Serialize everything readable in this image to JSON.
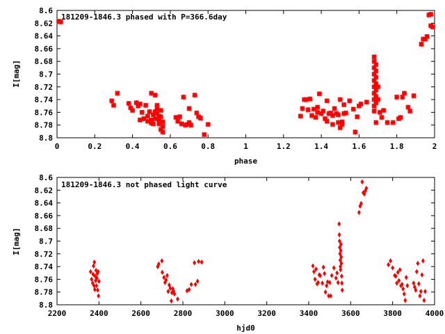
{
  "chart_data": [
    {
      "type": "scatter",
      "title": "181209-1846.3 phased with P=366.6day",
      "xlabel": "phase",
      "ylabel": "I[mag]",
      "xlim": [
        0,
        2
      ],
      "ylim": [
        8.6,
        8.8
      ],
      "y_inverted": true,
      "xticks": [
        0,
        0.2,
        0.4,
        0.6,
        0.8,
        1,
        1.2,
        1.4,
        1.6,
        1.8,
        2
      ],
      "xtick_labels": [
        "0",
        "0.2",
        "0.4",
        "0.6",
        "0.8",
        "1",
        "1.2",
        "1.4",
        "1.6",
        "1.8",
        "2"
      ],
      "yticks": [
        8.6,
        8.62,
        8.64,
        8.66,
        8.68,
        8.7,
        8.72,
        8.74,
        8.76,
        8.78,
        8.8
      ],
      "ytick_labels": [
        "8.6",
        "8.62",
        "8.64",
        "8.66",
        "8.68",
        "8.7",
        "8.72",
        "8.74",
        "8.76",
        "8.78",
        "8.8"
      ],
      "grid": false,
      "marker_color": "#ff0000",
      "points": [
        [
          0.01,
          8.617
        ],
        [
          0.02,
          8.618
        ],
        [
          0.29,
          8.742
        ],
        [
          0.3,
          8.749
        ],
        [
          0.32,
          8.73
        ],
        [
          0.38,
          8.746
        ],
        [
          0.39,
          8.753
        ],
        [
          0.4,
          8.757
        ],
        [
          0.42,
          8.745
        ],
        [
          0.43,
          8.75
        ],
        [
          0.44,
          8.772
        ],
        [
          0.44,
          8.747
        ],
        [
          0.45,
          8.76
        ],
        [
          0.46,
          8.77
        ],
        [
          0.47,
          8.749
        ],
        [
          0.48,
          8.766
        ],
        [
          0.48,
          8.774
        ],
        [
          0.49,
          8.759
        ],
        [
          0.5,
          8.73
        ],
        [
          0.5,
          8.772
        ],
        [
          0.5,
          8.777
        ],
        [
          0.51,
          8.764
        ],
        [
          0.51,
          8.778
        ],
        [
          0.52,
          8.733
        ],
        [
          0.52,
          8.77
        ],
        [
          0.52,
          8.759
        ],
        [
          0.53,
          8.749
        ],
        [
          0.53,
          8.755
        ],
        [
          0.53,
          8.762
        ],
        [
          0.54,
          8.766
        ],
        [
          0.54,
          8.772
        ],
        [
          0.54,
          8.778
        ],
        [
          0.55,
          8.787
        ],
        [
          0.55,
          8.757
        ],
        [
          0.55,
          8.767
        ],
        [
          0.56,
          8.775
        ],
        [
          0.56,
          8.782
        ],
        [
          0.56,
          8.791
        ],
        [
          0.63,
          8.768
        ],
        [
          0.64,
          8.774
        ],
        [
          0.65,
          8.767
        ],
        [
          0.66,
          8.778
        ],
        [
          0.67,
          8.736
        ],
        [
          0.68,
          8.78
        ],
        [
          0.69,
          8.779
        ],
        [
          0.7,
          8.776
        ],
        [
          0.7,
          8.754
        ],
        [
          0.71,
          8.78
        ],
        [
          0.73,
          8.733
        ],
        [
          0.74,
          8.761
        ],
        [
          0.75,
          8.767
        ],
        [
          0.76,
          8.769
        ],
        [
          0.78,
          8.795
        ],
        [
          0.8,
          8.779
        ],
        [
          1.29,
          8.766
        ],
        [
          1.3,
          8.754
        ],
        [
          1.31,
          8.74
        ],
        [
          1.32,
          8.74
        ],
        [
          1.33,
          8.756
        ],
        [
          1.34,
          8.739
        ],
        [
          1.35,
          8.765
        ],
        [
          1.36,
          8.755
        ],
        [
          1.37,
          8.768
        ],
        [
          1.38,
          8.76
        ],
        [
          1.38,
          8.752
        ],
        [
          1.39,
          8.731
        ],
        [
          1.4,
          8.762
        ],
        [
          1.41,
          8.758
        ],
        [
          1.42,
          8.77
        ],
        [
          1.43,
          8.774
        ],
        [
          1.43,
          8.742
        ],
        [
          1.44,
          8.762
        ],
        [
          1.45,
          8.761
        ],
        [
          1.46,
          8.765
        ],
        [
          1.46,
          8.779
        ],
        [
          1.47,
          8.754
        ],
        [
          1.48,
          8.762
        ],
        [
          1.49,
          8.764
        ],
        [
          1.49,
          8.776
        ],
        [
          1.5,
          8.784
        ],
        [
          1.5,
          8.74
        ],
        [
          1.51,
          8.775
        ],
        [
          1.51,
          8.779
        ],
        [
          1.52,
          8.762
        ],
        [
          1.52,
          8.748
        ],
        [
          1.53,
          8.761
        ],
        [
          1.55,
          8.742
        ],
        [
          1.57,
          8.755
        ],
        [
          1.58,
          8.791
        ],
        [
          1.59,
          8.767
        ],
        [
          1.6,
          8.75
        ],
        [
          1.61,
          8.747
        ],
        [
          1.64,
          8.744
        ],
        [
          1.68,
          8.673
        ],
        [
          1.68,
          8.68
        ],
        [
          1.68,
          8.69
        ],
        [
          1.68,
          8.7
        ],
        [
          1.68,
          8.71
        ],
        [
          1.68,
          8.72
        ],
        [
          1.68,
          8.73
        ],
        [
          1.68,
          8.74
        ],
        [
          1.68,
          8.75
        ],
        [
          1.68,
          8.758
        ],
        [
          1.69,
          8.685
        ],
        [
          1.69,
          8.695
        ],
        [
          1.69,
          8.705
        ],
        [
          1.69,
          8.715
        ],
        [
          1.69,
          8.725
        ],
        [
          1.69,
          8.735
        ],
        [
          1.69,
          8.745
        ],
        [
          1.69,
          8.776
        ],
        [
          1.7,
          8.72
        ],
        [
          1.7,
          8.74
        ],
        [
          1.71,
          8.76
        ],
        [
          1.72,
          8.768
        ],
        [
          1.73,
          8.757
        ],
        [
          1.75,
          8.776
        ],
        [
          1.78,
          8.776
        ],
        [
          1.8,
          8.736
        ],
        [
          1.81,
          8.77
        ],
        [
          1.82,
          8.768
        ],
        [
          1.83,
          8.736
        ],
        [
          1.84,
          8.73
        ],
        [
          1.86,
          8.752
        ],
        [
          1.87,
          8.758
        ],
        [
          1.89,
          8.734
        ],
        [
          1.93,
          8.653
        ],
        [
          1.94,
          8.645
        ],
        [
          1.95,
          8.645
        ],
        [
          1.96,
          8.641
        ],
        [
          1.97,
          8.607
        ],
        [
          1.98,
          8.606
        ],
        [
          1.98,
          8.624
        ],
        [
          1.99,
          8.626
        ]
      ]
    },
    {
      "type": "scatter",
      "title": "181209-1846.3 not phased light curve",
      "xlabel": "hjd0",
      "ylabel": "I[mag]",
      "xlim": [
        2200,
        4000
      ],
      "ylim": [
        8.6,
        8.8
      ],
      "y_inverted": true,
      "xticks": [
        2200,
        2400,
        2600,
        2800,
        3000,
        3200,
        3400,
        3600,
        3800,
        4000
      ],
      "xtick_labels": [
        "2200",
        "2400",
        "2600",
        "2800",
        "3000",
        "3200",
        "3400",
        "3600",
        "3800",
        "4000"
      ],
      "yticks": [
        8.6,
        8.62,
        8.64,
        8.66,
        8.68,
        8.7,
        8.72,
        8.74,
        8.76,
        8.78,
        8.8
      ],
      "ytick_labels": [
        "8.6",
        "8.62",
        "8.64",
        "8.66",
        "8.68",
        "8.7",
        "8.72",
        "8.74",
        "8.76",
        "8.78",
        "8.8"
      ],
      "grid": false,
      "marker_color": "#ff0000",
      "points": [
        [
          2360,
          8.748
        ],
        [
          2365,
          8.76
        ],
        [
          2370,
          8.766
        ],
        [
          2372,
          8.752
        ],
        [
          2374,
          8.739
        ],
        [
          2376,
          8.77
        ],
        [
          2378,
          8.733
        ],
        [
          2380,
          8.776
        ],
        [
          2382,
          8.755
        ],
        [
          2384,
          8.762
        ],
        [
          2386,
          8.746
        ],
        [
          2388,
          8.77
        ],
        [
          2390,
          8.758
        ],
        [
          2392,
          8.751
        ],
        [
          2394,
          8.777
        ],
        [
          2396,
          8.748
        ],
        [
          2398,
          8.786
        ],
        [
          2400,
          8.763
        ],
        [
          2680,
          8.74
        ],
        [
          2685,
          8.736
        ],
        [
          2700,
          8.731
        ],
        [
          2702,
          8.749
        ],
        [
          2710,
          8.757
        ],
        [
          2715,
          8.765
        ],
        [
          2720,
          8.761
        ],
        [
          2725,
          8.754
        ],
        [
          2730,
          8.779
        ],
        [
          2735,
          8.769
        ],
        [
          2740,
          8.774
        ],
        [
          2745,
          8.794
        ],
        [
          2748,
          8.781
        ],
        [
          2752,
          8.775
        ],
        [
          2756,
          8.779
        ],
        [
          2760,
          8.783
        ],
        [
          2775,
          8.791
        ],
        [
          2820,
          8.778
        ],
        [
          2830,
          8.776
        ],
        [
          2840,
          8.768
        ],
        [
          2855,
          8.734
        ],
        [
          2860,
          8.768
        ],
        [
          2870,
          8.763
        ],
        [
          2875,
          8.732
        ],
        [
          2890,
          8.733
        ],
        [
          3420,
          8.739
        ],
        [
          3425,
          8.748
        ],
        [
          3430,
          8.76
        ],
        [
          3435,
          8.744
        ],
        [
          3440,
          8.767
        ],
        [
          3445,
          8.765
        ],
        [
          3450,
          8.753
        ],
        [
          3455,
          8.754
        ],
        [
          3465,
          8.766
        ],
        [
          3470,
          8.741
        ],
        [
          3475,
          8.751
        ],
        [
          3480,
          8.78
        ],
        [
          3485,
          8.77
        ],
        [
          3490,
          8.764
        ],
        [
          3495,
          8.786
        ],
        [
          3500,
          8.765
        ],
        [
          3505,
          8.786
        ],
        [
          3510,
          8.754
        ],
        [
          3520,
          8.742
        ],
        [
          3530,
          8.758
        ],
        [
          3535,
          8.75
        ],
        [
          3540,
          8.765
        ],
        [
          3545,
          8.673
        ],
        [
          3546,
          8.69
        ],
        [
          3547,
          8.7
        ],
        [
          3548,
          8.71
        ],
        [
          3549,
          8.72
        ],
        [
          3550,
          8.73
        ],
        [
          3551,
          8.74
        ],
        [
          3552,
          8.745
        ],
        [
          3553,
          8.715
        ],
        [
          3554,
          8.705
        ],
        [
          3555,
          8.725
        ],
        [
          3556,
          8.735
        ],
        [
          3557,
          8.755
        ],
        [
          3558,
          8.766
        ],
        [
          3560,
          8.777
        ],
        [
          3640,
          8.655
        ],
        [
          3645,
          8.645
        ],
        [
          3650,
          8.641
        ],
        [
          3655,
          8.607
        ],
        [
          3660,
          8.624
        ],
        [
          3665,
          8.626
        ],
        [
          3670,
          8.621
        ],
        [
          3675,
          8.617
        ],
        [
          3780,
          8.737
        ],
        [
          3790,
          8.731
        ],
        [
          3800,
          8.742
        ],
        [
          3810,
          8.754
        ],
        [
          3815,
          8.755
        ],
        [
          3820,
          8.766
        ],
        [
          3825,
          8.749
        ],
        [
          3830,
          8.762
        ],
        [
          3835,
          8.745
        ],
        [
          3840,
          8.77
        ],
        [
          3845,
          8.768
        ],
        [
          3850,
          8.775
        ],
        [
          3855,
          8.783
        ],
        [
          3860,
          8.793
        ],
        [
          3865,
          8.757
        ],
        [
          3870,
          8.77
        ],
        [
          3900,
          8.766
        ],
        [
          3905,
          8.772
        ],
        [
          3910,
          8.777
        ],
        [
          3915,
          8.748
        ],
        [
          3920,
          8.735
        ],
        [
          3925,
          8.767
        ],
        [
          3930,
          8.786
        ],
        [
          3935,
          8.779
        ],
        [
          3940,
          8.753
        ],
        [
          3945,
          8.731
        ],
        [
          3950,
          8.793
        ],
        [
          3955,
          8.779
        ]
      ]
    }
  ]
}
